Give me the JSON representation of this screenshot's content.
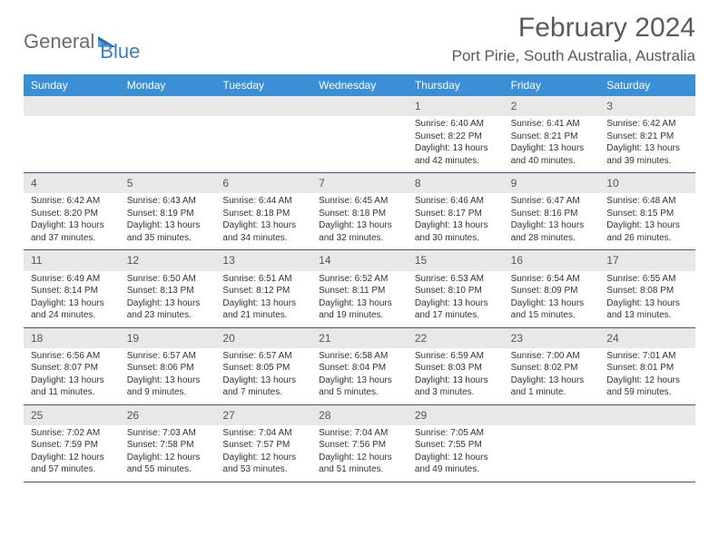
{
  "logo": {
    "word1": "General",
    "word2": "Blue"
  },
  "title": "February 2024",
  "location": "Port Pirie, South Australia, Australia",
  "colors": {
    "header_bg": "#3b8fd4",
    "header_fg": "#ffffff",
    "daynum_bg": "#e8e8e8",
    "week_border": "#3b5a7a",
    "logo_gray": "#6b6b6b",
    "logo_blue": "#3b7fbf",
    "title_color": "#5a5a5a"
  },
  "day_names": [
    "Sunday",
    "Monday",
    "Tuesday",
    "Wednesday",
    "Thursday",
    "Friday",
    "Saturday"
  ],
  "weeks": [
    [
      {
        "n": "",
        "sr": "",
        "ss": "",
        "dl1": "",
        "dl2": ""
      },
      {
        "n": "",
        "sr": "",
        "ss": "",
        "dl1": "",
        "dl2": ""
      },
      {
        "n": "",
        "sr": "",
        "ss": "",
        "dl1": "",
        "dl2": ""
      },
      {
        "n": "",
        "sr": "",
        "ss": "",
        "dl1": "",
        "dl2": ""
      },
      {
        "n": "1",
        "sr": "Sunrise: 6:40 AM",
        "ss": "Sunset: 8:22 PM",
        "dl1": "Daylight: 13 hours",
        "dl2": "and 42 minutes."
      },
      {
        "n": "2",
        "sr": "Sunrise: 6:41 AM",
        "ss": "Sunset: 8:21 PM",
        "dl1": "Daylight: 13 hours",
        "dl2": "and 40 minutes."
      },
      {
        "n": "3",
        "sr": "Sunrise: 6:42 AM",
        "ss": "Sunset: 8:21 PM",
        "dl1": "Daylight: 13 hours",
        "dl2": "and 39 minutes."
      }
    ],
    [
      {
        "n": "4",
        "sr": "Sunrise: 6:42 AM",
        "ss": "Sunset: 8:20 PM",
        "dl1": "Daylight: 13 hours",
        "dl2": "and 37 minutes."
      },
      {
        "n": "5",
        "sr": "Sunrise: 6:43 AM",
        "ss": "Sunset: 8:19 PM",
        "dl1": "Daylight: 13 hours",
        "dl2": "and 35 minutes."
      },
      {
        "n": "6",
        "sr": "Sunrise: 6:44 AM",
        "ss": "Sunset: 8:18 PM",
        "dl1": "Daylight: 13 hours",
        "dl2": "and 34 minutes."
      },
      {
        "n": "7",
        "sr": "Sunrise: 6:45 AM",
        "ss": "Sunset: 8:18 PM",
        "dl1": "Daylight: 13 hours",
        "dl2": "and 32 minutes."
      },
      {
        "n": "8",
        "sr": "Sunrise: 6:46 AM",
        "ss": "Sunset: 8:17 PM",
        "dl1": "Daylight: 13 hours",
        "dl2": "and 30 minutes."
      },
      {
        "n": "9",
        "sr": "Sunrise: 6:47 AM",
        "ss": "Sunset: 8:16 PM",
        "dl1": "Daylight: 13 hours",
        "dl2": "and 28 minutes."
      },
      {
        "n": "10",
        "sr": "Sunrise: 6:48 AM",
        "ss": "Sunset: 8:15 PM",
        "dl1": "Daylight: 13 hours",
        "dl2": "and 26 minutes."
      }
    ],
    [
      {
        "n": "11",
        "sr": "Sunrise: 6:49 AM",
        "ss": "Sunset: 8:14 PM",
        "dl1": "Daylight: 13 hours",
        "dl2": "and 24 minutes."
      },
      {
        "n": "12",
        "sr": "Sunrise: 6:50 AM",
        "ss": "Sunset: 8:13 PM",
        "dl1": "Daylight: 13 hours",
        "dl2": "and 23 minutes."
      },
      {
        "n": "13",
        "sr": "Sunrise: 6:51 AM",
        "ss": "Sunset: 8:12 PM",
        "dl1": "Daylight: 13 hours",
        "dl2": "and 21 minutes."
      },
      {
        "n": "14",
        "sr": "Sunrise: 6:52 AM",
        "ss": "Sunset: 8:11 PM",
        "dl1": "Daylight: 13 hours",
        "dl2": "and 19 minutes."
      },
      {
        "n": "15",
        "sr": "Sunrise: 6:53 AM",
        "ss": "Sunset: 8:10 PM",
        "dl1": "Daylight: 13 hours",
        "dl2": "and 17 minutes."
      },
      {
        "n": "16",
        "sr": "Sunrise: 6:54 AM",
        "ss": "Sunset: 8:09 PM",
        "dl1": "Daylight: 13 hours",
        "dl2": "and 15 minutes."
      },
      {
        "n": "17",
        "sr": "Sunrise: 6:55 AM",
        "ss": "Sunset: 8:08 PM",
        "dl1": "Daylight: 13 hours",
        "dl2": "and 13 minutes."
      }
    ],
    [
      {
        "n": "18",
        "sr": "Sunrise: 6:56 AM",
        "ss": "Sunset: 8:07 PM",
        "dl1": "Daylight: 13 hours",
        "dl2": "and 11 minutes."
      },
      {
        "n": "19",
        "sr": "Sunrise: 6:57 AM",
        "ss": "Sunset: 8:06 PM",
        "dl1": "Daylight: 13 hours",
        "dl2": "and 9 minutes."
      },
      {
        "n": "20",
        "sr": "Sunrise: 6:57 AM",
        "ss": "Sunset: 8:05 PM",
        "dl1": "Daylight: 13 hours",
        "dl2": "and 7 minutes."
      },
      {
        "n": "21",
        "sr": "Sunrise: 6:58 AM",
        "ss": "Sunset: 8:04 PM",
        "dl1": "Daylight: 13 hours",
        "dl2": "and 5 minutes."
      },
      {
        "n": "22",
        "sr": "Sunrise: 6:59 AM",
        "ss": "Sunset: 8:03 PM",
        "dl1": "Daylight: 13 hours",
        "dl2": "and 3 minutes."
      },
      {
        "n": "23",
        "sr": "Sunrise: 7:00 AM",
        "ss": "Sunset: 8:02 PM",
        "dl1": "Daylight: 13 hours",
        "dl2": "and 1 minute."
      },
      {
        "n": "24",
        "sr": "Sunrise: 7:01 AM",
        "ss": "Sunset: 8:01 PM",
        "dl1": "Daylight: 12 hours",
        "dl2": "and 59 minutes."
      }
    ],
    [
      {
        "n": "25",
        "sr": "Sunrise: 7:02 AM",
        "ss": "Sunset: 7:59 PM",
        "dl1": "Daylight: 12 hours",
        "dl2": "and 57 minutes."
      },
      {
        "n": "26",
        "sr": "Sunrise: 7:03 AM",
        "ss": "Sunset: 7:58 PM",
        "dl1": "Daylight: 12 hours",
        "dl2": "and 55 minutes."
      },
      {
        "n": "27",
        "sr": "Sunrise: 7:04 AM",
        "ss": "Sunset: 7:57 PM",
        "dl1": "Daylight: 12 hours",
        "dl2": "and 53 minutes."
      },
      {
        "n": "28",
        "sr": "Sunrise: 7:04 AM",
        "ss": "Sunset: 7:56 PM",
        "dl1": "Daylight: 12 hours",
        "dl2": "and 51 minutes."
      },
      {
        "n": "29",
        "sr": "Sunrise: 7:05 AM",
        "ss": "Sunset: 7:55 PM",
        "dl1": "Daylight: 12 hours",
        "dl2": "and 49 minutes."
      },
      {
        "n": "",
        "sr": "",
        "ss": "",
        "dl1": "",
        "dl2": ""
      },
      {
        "n": "",
        "sr": "",
        "ss": "",
        "dl1": "",
        "dl2": ""
      }
    ]
  ]
}
